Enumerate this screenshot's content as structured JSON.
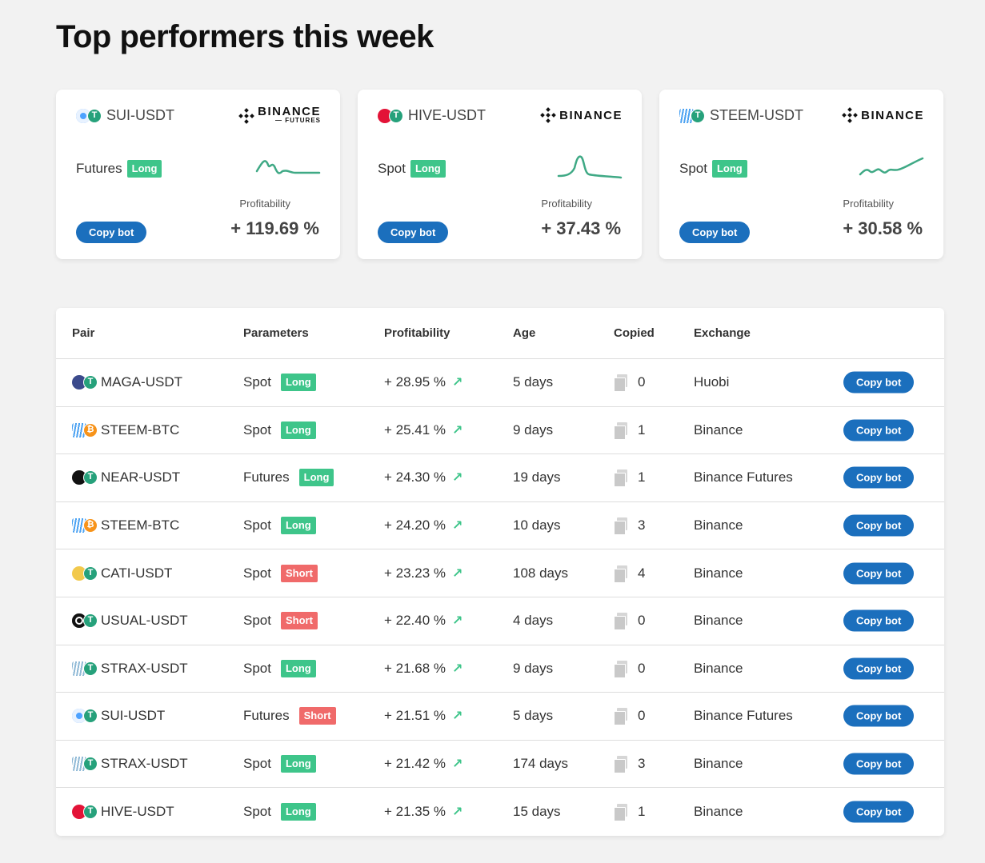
{
  "page": {
    "title": "Top performers this week"
  },
  "cards": [
    {
      "pair": "SUI-USDT",
      "base": "sui",
      "exchange": "BINANCE",
      "exchange_sub": "— FUTURES",
      "type": "Futures",
      "direction": "Long",
      "profit_label": "Profitability",
      "profit": "+ 119.69 %",
      "button": "Copy bot"
    },
    {
      "pair": "HIVE-USDT",
      "base": "hive",
      "exchange": "BINANCE",
      "exchange_sub": "",
      "type": "Spot",
      "direction": "Long",
      "profit_label": "Profitability",
      "profit": "+ 37.43 %",
      "button": "Copy bot"
    },
    {
      "pair": "STEEM-USDT",
      "base": "steem",
      "exchange": "BINANCE",
      "exchange_sub": "",
      "type": "Spot",
      "direction": "Long",
      "profit_label": "Profitability",
      "profit": "+ 30.58 %",
      "button": "Copy bot"
    }
  ],
  "table": {
    "headers": {
      "pair": "Pair",
      "parameters": "Parameters",
      "profitability": "Profitability",
      "age": "Age",
      "copied": "Copied",
      "exchange": "Exchange"
    },
    "rows": [
      {
        "pair": "MAGA-USDT",
        "base": "maga",
        "quote": "usdt",
        "type": "Spot",
        "direction": "Long",
        "profit": "+ 28.95 %",
        "age": "5 days",
        "copied": "0",
        "exchange": "Huobi",
        "button": "Copy bot"
      },
      {
        "pair": "STEEM-BTC",
        "base": "steem",
        "quote": "btc",
        "type": "Spot",
        "direction": "Long",
        "profit": "+ 25.41 %",
        "age": "9 days",
        "copied": "1",
        "exchange": "Binance",
        "button": "Copy bot"
      },
      {
        "pair": "NEAR-USDT",
        "base": "near",
        "quote": "usdt",
        "type": "Futures",
        "direction": "Long",
        "profit": "+ 24.30 %",
        "age": "19 days",
        "copied": "1",
        "exchange": "Binance Futures",
        "button": "Copy bot"
      },
      {
        "pair": "STEEM-BTC",
        "base": "steem",
        "quote": "btc",
        "type": "Spot",
        "direction": "Long",
        "profit": "+ 24.20 %",
        "age": "10 days",
        "copied": "3",
        "exchange": "Binance",
        "button": "Copy bot"
      },
      {
        "pair": "CATI-USDT",
        "base": "cati",
        "quote": "usdt",
        "type": "Spot",
        "direction": "Short",
        "profit": "+ 23.23 %",
        "age": "108 days",
        "copied": "4",
        "exchange": "Binance",
        "button": "Copy bot"
      },
      {
        "pair": "USUAL-USDT",
        "base": "usual",
        "quote": "usdt",
        "type": "Spot",
        "direction": "Short",
        "profit": "+ 22.40 %",
        "age": "4 days",
        "copied": "0",
        "exchange": "Binance",
        "button": "Copy bot"
      },
      {
        "pair": "STRAX-USDT",
        "base": "strax",
        "quote": "usdt",
        "type": "Spot",
        "direction": "Long",
        "profit": "+ 21.68 %",
        "age": "9 days",
        "copied": "0",
        "exchange": "Binance",
        "button": "Copy bot"
      },
      {
        "pair": "SUI-USDT",
        "base": "sui",
        "quote": "usdt",
        "type": "Futures",
        "direction": "Short",
        "profit": "+ 21.51 %",
        "age": "5 days",
        "copied": "0",
        "exchange": "Binance Futures",
        "button": "Copy bot"
      },
      {
        "pair": "STRAX-USDT",
        "base": "strax",
        "quote": "usdt",
        "type": "Spot",
        "direction": "Long",
        "profit": "+ 21.42 %",
        "age": "174 days",
        "copied": "3",
        "exchange": "Binance",
        "button": "Copy bot"
      },
      {
        "pair": "HIVE-USDT",
        "base": "hive",
        "quote": "usdt",
        "type": "Spot",
        "direction": "Long",
        "profit": "+ 21.35 %",
        "age": "15 days",
        "copied": "1",
        "exchange": "Binance",
        "button": "Copy bot"
      }
    ]
  },
  "colors": {
    "long": "#3ec58a",
    "short": "#f06a6a",
    "button": "#1b6fbd",
    "usdt": "#26a17b",
    "btc": "#f7931a",
    "sui": "#4da2ff",
    "hive": "#e31337",
    "steem": "#4ba2f2",
    "maga": "#3b4a8c",
    "near": "#111111",
    "cati": "#f2c94c",
    "usual": "#111111",
    "strax": "#8fb9d6"
  }
}
